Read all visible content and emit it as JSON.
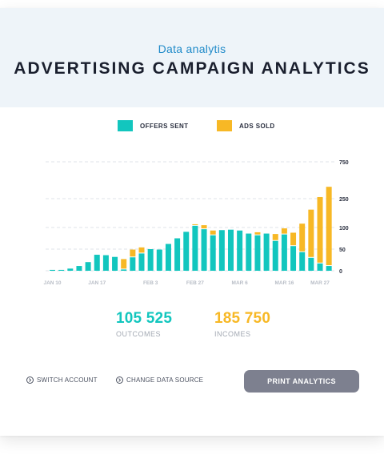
{
  "header": {
    "subtitle": "Data analytis",
    "title": "ADVERTISING CAMPAIGN ANALYTICS"
  },
  "legend": {
    "offers": {
      "label": "OFFERS SENT",
      "color": "#12c6be"
    },
    "ads": {
      "label": "ADS SOLD",
      "color": "#f7b825"
    }
  },
  "chart_data": {
    "type": "bar",
    "stacked": true,
    "grid": true,
    "y_ticks": [
      "750",
      "250",
      "100",
      "50",
      "0"
    ],
    "x_tick_labels": [
      "JAN 10",
      "JAN 17",
      "FEB 3",
      "FEB 27",
      "MAR 6",
      "MAR 16",
      "MAR 27"
    ],
    "series": [
      {
        "name": "OFFERS SENT",
        "color": "#12c6be",
        "values": [
          2,
          2,
          5,
          11,
          20,
          37,
          36,
          32,
          3,
          31,
          40,
          50,
          49,
          62,
          75,
          90,
          109,
          96,
          82,
          94,
          95,
          93,
          86,
          82,
          86,
          69,
          84,
          57,
          43,
          30,
          17,
          11
        ]
      },
      {
        "name": "ADS SOLD",
        "color": "#f7b825",
        "values": [
          0,
          0,
          0,
          0,
          0,
          0,
          0,
          0,
          24,
          18,
          14,
          0,
          0,
          0,
          0,
          0,
          8,
          16,
          11,
          0,
          0,
          0,
          0,
          7,
          0,
          16,
          14,
          31,
          77,
          163,
          255,
          400
        ]
      }
    ]
  },
  "stats": {
    "outcomes": {
      "value": "105 525",
      "label": "OUTCOMES",
      "color": "#12c6be"
    },
    "incomes": {
      "value": "185 750",
      "label": "INCOMES",
      "color": "#f7b825"
    }
  },
  "footer": {
    "switch_account": "SWITCH ACCOUNT",
    "change_source": "CHANGE DATA SOURCE",
    "print": "PRINT ANALYTICS"
  }
}
